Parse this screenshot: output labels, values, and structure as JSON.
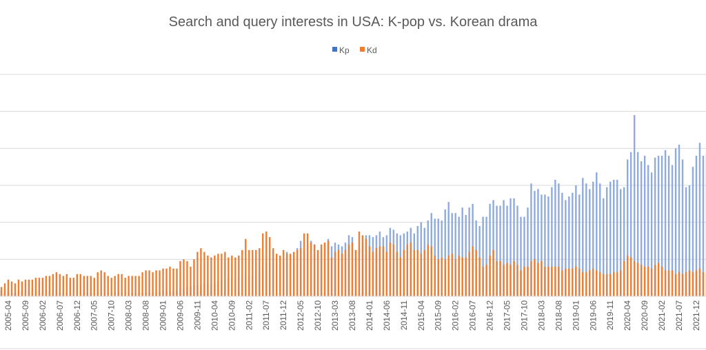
{
  "chart_data": {
    "type": "bar",
    "title": "Search and query interests in USA: K-pop vs. Korean drama",
    "xlabel": "",
    "ylabel": "",
    "x_first": "2005-02",
    "x_last": "2022-03",
    "x_step": "monthly",
    "ylim": [
      0,
      120
    ],
    "y_gridlines": [
      0,
      20,
      40,
      60,
      80,
      100,
      120
    ],
    "grid": true,
    "y_tick_labels_visible": false,
    "legend": {
      "placement": "top",
      "entries": [
        "Kp",
        "Kd"
      ]
    },
    "bar_layout": "overlapped",
    "tick_labels": [
      "2005-04",
      "2005-09",
      "2006-02",
      "2006-07",
      "2006-12",
      "2007-05",
      "2007-10",
      "2008-03",
      "2008-08",
      "2009-01",
      "2009-06",
      "2009-11",
      "2010-04",
      "2010-09",
      "2011-02",
      "2011-07",
      "2011-12",
      "2012-05",
      "2012-10",
      "2013-03",
      "2013-08",
      "2014-01",
      "2014-06",
      "2014-11",
      "2015-04",
      "2015-09",
      "2016-02",
      "2016-07",
      "2016-12",
      "2017-05",
      "2017-10",
      "2018-03",
      "2018-08",
      "2019-01",
      "2019-06",
      "2019-11",
      "2020-04",
      "2020-09",
      "2021-02",
      "2021-07",
      "2021-12"
    ],
    "series": [
      {
        "name": "Kp",
        "color": "#4472C4",
        "bar_color": "#8FAADC",
        "values": [
          3,
          3,
          3,
          3,
          2,
          3,
          3,
          3,
          3,
          4,
          3,
          3,
          3,
          3,
          2,
          3,
          3,
          2,
          3,
          2,
          2,
          3,
          3,
          3,
          3,
          2,
          2,
          2,
          2,
          2,
          2,
          2,
          2,
          2,
          2,
          2,
          2,
          2,
          2,
          2,
          2,
          2,
          2,
          2,
          2,
          2,
          2,
          3,
          3,
          3,
          3,
          3,
          4,
          4,
          5,
          5,
          6,
          6,
          6,
          7,
          7,
          6,
          7,
          8,
          9,
          9,
          10,
          10,
          10,
          10,
          10,
          11,
          11,
          11,
          14,
          14,
          15,
          17,
          18,
          20,
          19,
          21,
          21,
          24,
          22,
          23,
          26,
          30,
          25,
          28,
          30,
          28,
          25,
          25,
          29,
          31,
          27,
          29,
          28,
          27,
          29,
          33,
          32,
          25,
          26,
          29,
          33,
          33,
          32,
          33,
          35,
          32,
          33,
          37,
          36,
          34,
          33,
          34,
          35,
          37,
          34,
          38,
          40,
          37,
          41,
          45,
          42,
          42,
          41,
          47,
          51,
          45,
          45,
          43,
          48,
          44,
          48,
          50,
          41,
          38,
          43,
          43,
          50,
          52,
          49,
          49,
          52,
          49,
          53,
          53,
          49,
          43,
          43,
          48,
          61,
          57,
          58,
          55,
          55,
          54,
          59,
          63,
          61,
          56,
          52,
          54,
          56,
          60,
          55,
          64,
          61,
          58,
          62,
          67,
          61,
          53,
          59,
          62,
          63,
          63,
          58,
          59,
          74,
          78,
          98,
          78,
          73,
          76,
          71,
          67,
          75,
          76,
          76,
          79,
          76,
          71,
          80,
          82,
          74,
          59,
          60,
          70,
          76,
          83,
          76,
          77
        ]
      },
      {
        "name": "Kd",
        "color": "#ED7D31",
        "bar_color": "#ED7D31",
        "values": [
          5,
          7,
          9,
          8,
          7,
          9,
          8,
          9,
          9,
          9,
          10,
          10,
          10,
          11,
          11,
          12,
          13,
          12,
          11,
          12,
          10,
          10,
          12,
          12,
          11,
          11,
          11,
          10,
          13,
          14,
          13,
          11,
          10,
          11,
          12,
          12,
          10,
          11,
          11,
          11,
          11,
          13,
          14,
          14,
          13,
          14,
          14,
          15,
          15,
          16,
          15,
          15,
          19,
          20,
          19,
          16,
          20,
          24,
          26,
          24,
          22,
          21,
          22,
          23,
          23,
          24,
          21,
          22,
          21,
          22,
          25,
          31,
          25,
          25,
          25,
          26,
          34,
          35,
          32,
          26,
          23,
          22,
          25,
          23,
          23,
          24,
          25,
          26,
          34,
          34,
          29,
          28,
          25,
          28,
          29,
          30,
          21,
          24,
          25,
          23,
          25,
          28,
          29,
          25,
          35,
          33,
          31,
          27,
          24,
          26,
          27,
          27,
          24,
          29,
          28,
          24,
          21,
          25,
          28,
          29,
          25,
          25,
          23,
          25,
          28,
          27,
          22,
          20,
          21,
          20,
          22,
          23,
          20,
          22,
          21,
          21,
          24,
          27,
          25,
          21,
          16,
          17,
          22,
          25,
          19,
          19,
          17,
          18,
          17,
          19,
          17,
          14,
          16,
          16,
          19,
          20,
          18,
          19,
          16,
          16,
          16,
          16,
          16,
          14,
          15,
          15,
          15,
          16,
          15,
          13,
          13,
          14,
          15,
          14,
          13,
          12,
          12,
          12,
          13,
          13,
          14,
          19,
          22,
          21,
          19,
          18,
          17,
          16,
          16,
          15,
          17,
          18,
          16,
          14,
          14,
          14,
          12,
          13,
          12,
          13,
          14,
          13,
          14,
          15,
          13,
          12
        ]
      }
    ]
  }
}
